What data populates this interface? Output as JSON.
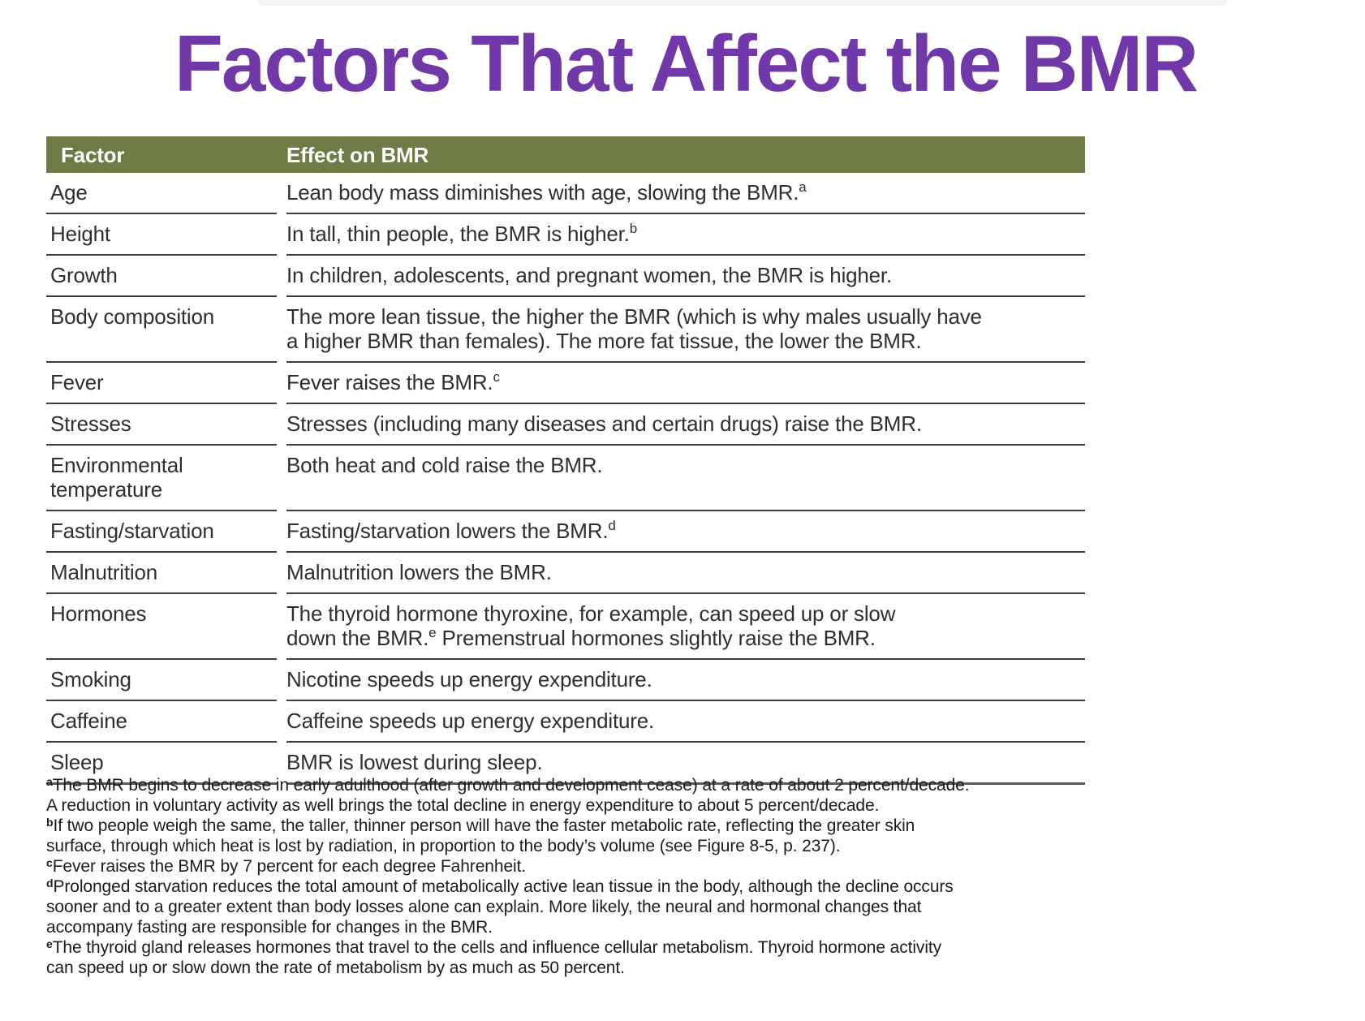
{
  "page": {
    "title": "Factors That Affect the BMR"
  },
  "colors": {
    "title_purple": "#7038A8",
    "header_olive": "#6E7B44",
    "row_line": "#3d3d3d",
    "body_text": "#2f2f2f"
  },
  "table": {
    "header": {
      "factor": "Factor",
      "effect": "Effect on BMR"
    },
    "rows": [
      {
        "factor": "Age",
        "effect_parts": [
          {
            "text": "Lean body mass diminishes with age, slowing the BMR."
          },
          {
            "sup": "a"
          }
        ]
      },
      {
        "factor": "Height",
        "effect_parts": [
          {
            "text": "In tall, thin people, the BMR is higher."
          },
          {
            "sup": "b"
          }
        ]
      },
      {
        "factor": "Growth",
        "effect_parts": [
          {
            "text": "In children, adolescents, and pregnant women, the BMR is higher."
          }
        ]
      },
      {
        "factor": "Body composition",
        "effect_parts": [
          {
            "text": "The more lean tissue, the higher the BMR (which is why males usually have\na higher BMR than females). The more fat tissue, the lower the BMR."
          }
        ]
      },
      {
        "factor": "Fever",
        "effect_parts": [
          {
            "text": "Fever raises the BMR."
          },
          {
            "sup": "c"
          }
        ]
      },
      {
        "factor": "Stresses",
        "effect_parts": [
          {
            "text": "Stresses (including many diseases and certain drugs) raise the BMR."
          }
        ]
      },
      {
        "factor": "Environmental\ntemperature",
        "effect_parts": [
          {
            "text": "Both heat and cold raise the BMR."
          }
        ]
      },
      {
        "factor": "Fasting/starvation",
        "effect_parts": [
          {
            "text": "Fasting/starvation lowers the BMR."
          },
          {
            "sup": "d"
          }
        ]
      },
      {
        "factor": "Malnutrition",
        "effect_parts": [
          {
            "text": "Malnutrition lowers the BMR."
          }
        ]
      },
      {
        "factor": "Hormones",
        "effect_parts": [
          {
            "text": "The thyroid hormone thyroxine, for example, can speed up or slow\ndown the BMR."
          },
          {
            "sup": "e"
          },
          {
            "text": " Premenstrual hormones slightly raise the BMR."
          }
        ]
      },
      {
        "factor": "Smoking",
        "effect_parts": [
          {
            "text": "Nicotine speeds up energy expenditure."
          }
        ]
      },
      {
        "factor": "Caffeine",
        "effect_parts": [
          {
            "text": "Caffeine speeds up energy expenditure."
          }
        ]
      },
      {
        "factor": "Sleep",
        "effect_parts": [
          {
            "text": "BMR is lowest during sleep."
          }
        ]
      }
    ]
  },
  "footnotes": [
    {
      "marker": "a",
      "text": "The BMR begins to decrease in early adulthood (after growth and development cease) at a rate of about 2 percent/decade.\nA reduction in voluntary activity as well brings the total decline in energy expenditure to about 5 percent/decade."
    },
    {
      "marker": "b",
      "text": "If two people weigh the same, the taller, thinner person will have the faster metabolic rate, reflecting the greater skin\nsurface, through which heat is lost by radiation, in proportion to the body’s volume (see Figure 8-5, p. 237)."
    },
    {
      "marker": "c",
      "text": "Fever raises the BMR by 7 percent for each degree Fahrenheit."
    },
    {
      "marker": "d",
      "text": "Prolonged starvation reduces the total amount of metabolically active lean tissue in the body, although the decline occurs\nsooner and to a greater extent than body losses alone can explain. More likely, the neural and hormonal changes that\naccompany fasting are responsible for changes in the BMR."
    },
    {
      "marker": "e",
      "text": "The thyroid gland releases hormones that travel to the cells and influence cellular metabolism. Thyroid hormone activity\ncan speed up or slow down the rate of metabolism by as much as 50 percent."
    }
  ]
}
